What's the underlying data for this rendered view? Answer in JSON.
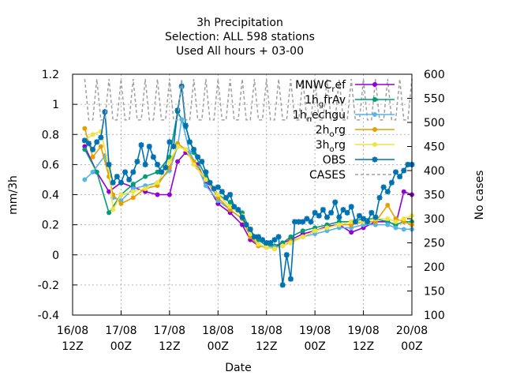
{
  "chart_data": {
    "type": "line",
    "title_lines": [
      "3h Precipitation",
      "Selection: ALL     598 stations",
      "Used  All hours  + 03-00"
    ],
    "xlabel": "Date",
    "ylabel": "mm/3h",
    "y2label": "No cases",
    "x_tick_labels": [
      [
        "16/08",
        "12Z"
      ],
      [
        "17/08",
        "00Z"
      ],
      [
        "17/08",
        "12Z"
      ],
      [
        "18/08",
        "00Z"
      ],
      [
        "18/08",
        "12Z"
      ],
      [
        "19/08",
        "00Z"
      ],
      [
        "19/08",
        "12Z"
      ],
      [
        "20/08",
        "00Z"
      ]
    ],
    "x_tick_hours": [
      0,
      12,
      24,
      36,
      48,
      60,
      72,
      84
    ],
    "xlim_hours": [
      0,
      84
    ],
    "ylim": [
      -0.4,
      1.2
    ],
    "y_ticks": [
      "-0.4",
      "-0.2",
      "0",
      "0.2",
      "0.4",
      "0.6",
      "0.8",
      "1",
      "1.2"
    ],
    "y2lim": [
      100,
      600
    ],
    "y2_ticks": [
      "100",
      "150",
      "200",
      "250",
      "300",
      "350",
      "400",
      "450",
      "500",
      "550",
      "600"
    ],
    "grid": true,
    "legend_position": "top-right",
    "series": [
      {
        "name": "MNWC_ref",
        "legend_main": "MNWC",
        "legend_sub": "r",
        "legend_tail": "ef",
        "color": "#9400d3",
        "marker": "circle",
        "points": [
          [
            3,
            0.72
          ],
          [
            6,
            0.55
          ],
          [
            9,
            0.42
          ],
          [
            12,
            0.48
          ],
          [
            15,
            0.45
          ],
          [
            18,
            0.42
          ],
          [
            21,
            0.4
          ],
          [
            24,
            0.4
          ],
          [
            26,
            0.62
          ],
          [
            28,
            0.68
          ],
          [
            31,
            0.6
          ],
          [
            33,
            0.48
          ],
          [
            36,
            0.34
          ],
          [
            39,
            0.28
          ],
          [
            42,
            0.2
          ],
          [
            44,
            0.1
          ],
          [
            46,
            0.06
          ],
          [
            48,
            0.05
          ],
          [
            50,
            0.05
          ],
          [
            52,
            0.08
          ],
          [
            54,
            0.1
          ],
          [
            57,
            0.14
          ],
          [
            60,
            0.16
          ],
          [
            63,
            0.19
          ],
          [
            66,
            0.2
          ],
          [
            69,
            0.15
          ],
          [
            72,
            0.18
          ],
          [
            75,
            0.22
          ],
          [
            78,
            0.22
          ],
          [
            80,
            0.2
          ],
          [
            82,
            0.42
          ],
          [
            84,
            0.4
          ]
        ]
      },
      {
        "name": "1h_gfrAv",
        "legend_main": "1h",
        "legend_sub": "g",
        "legend_tail": "frAv",
        "color": "#009e73",
        "marker": "circle",
        "points": [
          [
            3,
            0.7
          ],
          [
            6,
            0.55
          ],
          [
            9,
            0.28
          ],
          [
            12,
            0.4
          ],
          [
            15,
            0.47
          ],
          [
            18,
            0.52
          ],
          [
            21,
            0.55
          ],
          [
            24,
            0.65
          ],
          [
            26,
            0.95
          ],
          [
            28,
            0.85
          ],
          [
            30,
            0.68
          ],
          [
            33,
            0.52
          ],
          [
            36,
            0.4
          ],
          [
            39,
            0.35
          ],
          [
            42,
            0.28
          ],
          [
            44,
            0.16
          ],
          [
            46,
            0.1
          ],
          [
            48,
            0.06
          ],
          [
            50,
            0.06
          ],
          [
            52,
            0.08
          ],
          [
            54,
            0.12
          ],
          [
            57,
            0.16
          ],
          [
            60,
            0.18
          ],
          [
            63,
            0.2
          ],
          [
            66,
            0.22
          ],
          [
            69,
            0.22
          ],
          [
            72,
            0.24
          ],
          [
            75,
            0.24
          ],
          [
            78,
            0.22
          ],
          [
            80,
            0.2
          ],
          [
            82,
            0.22
          ],
          [
            84,
            0.22
          ]
        ]
      },
      {
        "name": "1h_nechgu",
        "legend_main": "1h",
        "legend_sub": "n",
        "legend_tail": "echgu",
        "color": "#56b4e9",
        "marker": "circle",
        "points": [
          [
            3,
            0.5
          ],
          [
            5,
            0.55
          ],
          [
            8,
            0.66
          ],
          [
            10,
            0.38
          ],
          [
            12,
            0.36
          ],
          [
            15,
            0.44
          ],
          [
            18,
            0.46
          ],
          [
            21,
            0.48
          ],
          [
            24,
            0.56
          ],
          [
            26,
            0.72
          ],
          [
            27,
            0.9
          ],
          [
            29,
            0.68
          ],
          [
            31,
            0.58
          ],
          [
            33,
            0.46
          ],
          [
            36,
            0.36
          ],
          [
            39,
            0.3
          ],
          [
            42,
            0.24
          ],
          [
            44,
            0.13
          ],
          [
            46,
            0.07
          ],
          [
            48,
            0.05
          ],
          [
            50,
            0.05
          ],
          [
            52,
            0.06
          ],
          [
            54,
            0.08
          ],
          [
            57,
            0.12
          ],
          [
            60,
            0.14
          ],
          [
            63,
            0.16
          ],
          [
            66,
            0.18
          ],
          [
            69,
            0.18
          ],
          [
            72,
            0.2
          ],
          [
            75,
            0.2
          ],
          [
            78,
            0.2
          ],
          [
            80,
            0.18
          ],
          [
            82,
            0.17
          ],
          [
            84,
            0.17
          ]
        ]
      },
      {
        "name": "2h_org",
        "legend_main": "2h",
        "legend_sub": "o",
        "legend_tail": "rg",
        "color": "#e69f00",
        "marker": "circle",
        "points": [
          [
            3,
            0.84
          ],
          [
            5,
            0.65
          ],
          [
            7,
            0.72
          ],
          [
            9,
            0.52
          ],
          [
            10,
            0.4
          ],
          [
            12,
            0.34
          ],
          [
            15,
            0.38
          ],
          [
            18,
            0.44
          ],
          [
            21,
            0.46
          ],
          [
            24,
            0.58
          ],
          [
            26,
            0.74
          ],
          [
            28,
            0.7
          ],
          [
            30,
            0.62
          ],
          [
            33,
            0.5
          ],
          [
            36,
            0.38
          ],
          [
            39,
            0.3
          ],
          [
            42,
            0.24
          ],
          [
            44,
            0.12
          ],
          [
            46,
            0.06
          ],
          [
            48,
            0.05
          ],
          [
            50,
            0.04
          ],
          [
            52,
            0.06
          ],
          [
            54,
            0.09
          ],
          [
            57,
            0.12
          ],
          [
            60,
            0.16
          ],
          [
            63,
            0.18
          ],
          [
            66,
            0.2
          ],
          [
            69,
            0.2
          ],
          [
            72,
            0.22
          ],
          [
            75,
            0.22
          ],
          [
            78,
            0.33
          ],
          [
            80,
            0.24
          ],
          [
            82,
            0.22
          ],
          [
            84,
            0.2
          ]
        ]
      },
      {
        "name": "3h_org",
        "legend_main": "3h",
        "legend_sub": "o",
        "legend_tail": "rg",
        "color": "#f0e442",
        "marker": "circle",
        "points": [
          [
            3,
            0.76
          ],
          [
            5,
            0.8
          ],
          [
            7,
            0.82
          ],
          [
            9,
            0.58
          ],
          [
            10,
            0.3
          ],
          [
            12,
            0.4
          ],
          [
            15,
            0.42
          ],
          [
            18,
            0.44
          ],
          [
            21,
            0.48
          ],
          [
            24,
            0.62
          ],
          [
            26,
            0.72
          ],
          [
            28,
            0.7
          ],
          [
            30,
            0.6
          ],
          [
            33,
            0.5
          ],
          [
            36,
            0.4
          ],
          [
            39,
            0.32
          ],
          [
            42,
            0.26
          ],
          [
            44,
            0.14
          ],
          [
            46,
            0.07
          ],
          [
            48,
            0.05
          ],
          [
            50,
            0.04
          ],
          [
            52,
            0.06
          ],
          [
            54,
            0.08
          ],
          [
            57,
            0.12
          ],
          [
            60,
            0.16
          ],
          [
            63,
            0.18
          ],
          [
            66,
            0.2
          ],
          [
            69,
            0.22
          ],
          [
            72,
            0.22
          ],
          [
            75,
            0.24
          ],
          [
            78,
            0.24
          ],
          [
            80,
            0.22
          ],
          [
            82,
            0.24
          ],
          [
            84,
            0.26
          ]
        ]
      },
      {
        "name": "OBS",
        "legend_main": "OBS",
        "legend_sub": "",
        "legend_tail": "",
        "color": "#0072b2",
        "marker": "star",
        "points": [
          [
            3,
            0.76
          ],
          [
            4,
            0.74
          ],
          [
            5,
            0.7
          ],
          [
            6,
            0.75
          ],
          [
            7,
            0.78
          ],
          [
            8,
            0.95
          ],
          [
            9,
            0.6
          ],
          [
            10,
            0.48
          ],
          [
            11,
            0.52
          ],
          [
            12,
            0.48
          ],
          [
            13,
            0.55
          ],
          [
            14,
            0.5
          ],
          [
            15,
            0.55
          ],
          [
            16,
            0.62
          ],
          [
            17,
            0.73
          ],
          [
            18,
            0.6
          ],
          [
            19,
            0.72
          ],
          [
            20,
            0.65
          ],
          [
            21,
            0.6
          ],
          [
            22,
            0.55
          ],
          [
            23,
            0.58
          ],
          [
            24,
            0.75
          ],
          [
            25,
            0.72
          ],
          [
            26,
            0.96
          ],
          [
            27,
            1.12
          ],
          [
            28,
            0.86
          ],
          [
            29,
            0.75
          ],
          [
            30,
            0.7
          ],
          [
            31,
            0.65
          ],
          [
            32,
            0.62
          ],
          [
            33,
            0.55
          ],
          [
            34,
            0.48
          ],
          [
            35,
            0.44
          ],
          [
            36,
            0.45
          ],
          [
            37,
            0.42
          ],
          [
            38,
            0.38
          ],
          [
            39,
            0.4
          ],
          [
            40,
            0.32
          ],
          [
            41,
            0.3
          ],
          [
            42,
            0.25
          ],
          [
            43,
            0.2
          ],
          [
            44,
            0.17
          ],
          [
            45,
            0.12
          ],
          [
            46,
            0.12
          ],
          [
            47,
            0.1
          ],
          [
            48,
            0.08
          ],
          [
            49,
            0.08
          ],
          [
            50,
            0.1
          ],
          [
            51,
            0.12
          ],
          [
            52,
            -0.2
          ],
          [
            53,
            0.0
          ],
          [
            54,
            -0.16
          ],
          [
            55,
            0.22
          ],
          [
            56,
            0.22
          ],
          [
            57,
            0.22
          ],
          [
            58,
            0.24
          ],
          [
            59,
            0.22
          ],
          [
            60,
            0.28
          ],
          [
            61,
            0.26
          ],
          [
            62,
            0.3
          ],
          [
            63,
            0.25
          ],
          [
            64,
            0.28
          ],
          [
            65,
            0.35
          ],
          [
            66,
            0.25
          ],
          [
            67,
            0.3
          ],
          [
            68,
            0.28
          ],
          [
            69,
            0.32
          ],
          [
            70,
            0.22
          ],
          [
            71,
            0.26
          ],
          [
            72,
            0.24
          ],
          [
            73,
            0.22
          ],
          [
            74,
            0.28
          ],
          [
            75,
            0.25
          ],
          [
            76,
            0.38
          ],
          [
            77,
            0.45
          ],
          [
            78,
            0.42
          ],
          [
            79,
            0.48
          ],
          [
            80,
            0.55
          ],
          [
            81,
            0.52
          ],
          [
            82,
            0.56
          ],
          [
            83,
            0.6
          ],
          [
            84,
            0.6
          ]
        ]
      },
      {
        "name": "CASES",
        "legend_main": "CASES",
        "legend_sub": "",
        "legend_tail": "",
        "color": "#a0a0a0",
        "marker": "none",
        "axis": "y2",
        "base": 505,
        "peak": 590,
        "period_hours": 3,
        "start_hour": 3,
        "end_hour": 84
      }
    ]
  }
}
